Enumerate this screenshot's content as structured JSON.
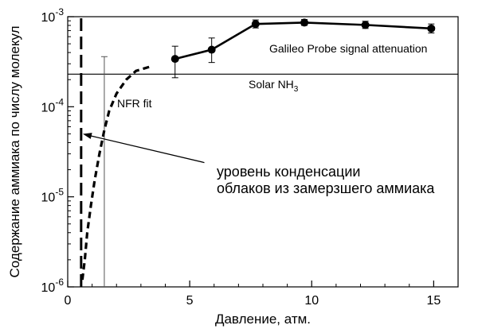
{
  "chart_data": {
    "type": "line",
    "xlabel": "Давление, атм.",
    "ylabel": "Содержание аммиака по числу молекул",
    "xlim": [
      0,
      16
    ],
    "ylim": [
      1e-06,
      0.001
    ],
    "yscale": "log",
    "grid": false,
    "x_ticks": [
      {
        "value": 0,
        "label": "0"
      },
      {
        "value": 5,
        "label": "5"
      },
      {
        "value": 10,
        "label": "10"
      },
      {
        "value": 15,
        "label": "15"
      }
    ],
    "y_ticks": [
      {
        "value": 1e-06,
        "base": "10",
        "exp": "-6"
      },
      {
        "value": 1e-05,
        "base": "10",
        "exp": "-5"
      },
      {
        "value": 0.0001,
        "base": "10",
        "exp": "-4"
      },
      {
        "value": 0.001,
        "base": "10",
        "exp": "-3"
      }
    ],
    "series": [
      {
        "name": "Galileo Probe signal attenuation",
        "style": "solid-markers",
        "color": "#000000",
        "points": [
          {
            "x": 4.4,
            "y": 0.00034,
            "err_hi": 0.00047,
            "err_lo": 0.00021
          },
          {
            "x": 5.9,
            "y": 0.00043,
            "err_hi": 0.00058,
            "err_lo": 0.00031
          },
          {
            "x": 7.7,
            "y": 0.00083,
            "err_hi": 0.00092,
            "err_lo": 0.00075
          },
          {
            "x": 9.7,
            "y": 0.00086,
            "err_hi": 0.00093,
            "err_lo": 0.0008
          },
          {
            "x": 12.2,
            "y": 0.00081,
            "err_hi": 0.00089,
            "err_lo": 0.00074
          },
          {
            "x": 14.9,
            "y": 0.00074,
            "err_hi": 0.00083,
            "err_lo": 0.00066
          }
        ]
      },
      {
        "name": "NFR fit",
        "style": "dashed",
        "color": "#000000",
        "points": [
          {
            "x": 0.6,
            "y": 1.2e-06
          },
          {
            "x": 0.7,
            "y": 2e-06
          },
          {
            "x": 0.8,
            "y": 4e-06
          },
          {
            "x": 0.95,
            "y": 8e-06
          },
          {
            "x": 1.1,
            "y": 1.5e-05
          },
          {
            "x": 1.3,
            "y": 3e-05
          },
          {
            "x": 1.5,
            "y": 5.5e-05
          },
          {
            "x": 1.7,
            "y": 9e-05
          },
          {
            "x": 2.0,
            "y": 0.00014
          },
          {
            "x": 2.4,
            "y": 0.0002
          },
          {
            "x": 2.8,
            "y": 0.00025
          },
          {
            "x": 3.4,
            "y": 0.00028
          }
        ]
      }
    ],
    "reference_lines": [
      {
        "name": "Solar NH3",
        "label": "Solar NH",
        "label_sub": "3",
        "orientation": "horizontal",
        "value": 0.00023
      }
    ],
    "condensation_line": {
      "x": 0.55,
      "ymin": 1e-06,
      "ymax": 0.001
    },
    "nfr_error_bar": {
      "x": 1.5,
      "y_hi": 0.00036,
      "y_lo": 1e-06
    },
    "annotations": [
      {
        "text": "Galileo Probe signal attenuation"
      },
      {
        "text": "NFR fit"
      },
      {
        "text": "уровень конденсации"
      },
      {
        "text": "облаков из замерзшего аммиака"
      }
    ],
    "arrow": {
      "from": {
        "x": 5.6,
        "y": 2.4e-05
      },
      "to": {
        "x": 0.62,
        "y": 5e-05
      }
    }
  }
}
